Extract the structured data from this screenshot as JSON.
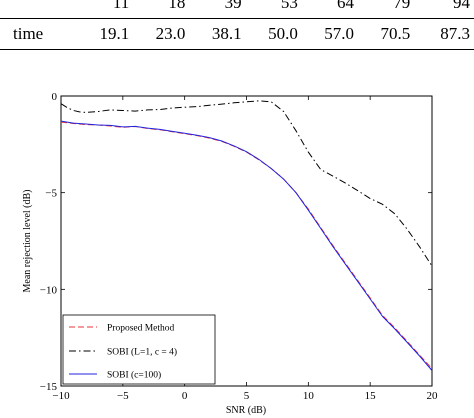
{
  "table": {
    "rows": [
      {
        "label": "",
        "values": [
          "11",
          "18",
          "39",
          "53",
          "64",
          "79",
          "94"
        ]
      },
      {
        "label": "time",
        "values": [
          "19.1",
          "23.0",
          "38.1",
          "50.0",
          "57.0",
          "70.5",
          "87.3"
        ]
      }
    ]
  },
  "chart_data": {
    "type": "line",
    "xlabel": "SNR (dB)",
    "ylabel": "Mean rejection level (dB)",
    "xlim": [
      -10,
      20
    ],
    "ylim": [
      -15,
      0
    ],
    "xticks": [
      -10,
      -5,
      0,
      5,
      10,
      15,
      20
    ],
    "yticks": [
      0,
      -5,
      -10,
      -15
    ],
    "grid": false,
    "legend_position": "bottom-left",
    "series": [
      {
        "name": "Proposed Method",
        "color": "#e8333a",
        "dash": "dashed",
        "x": [
          -10,
          -9,
          -8,
          -7,
          -6,
          -5,
          -4,
          -3,
          -2,
          -1,
          0,
          1,
          2,
          3,
          4,
          5,
          6,
          7,
          8,
          9,
          10,
          11,
          12,
          13,
          14,
          15,
          16,
          17,
          18,
          19,
          20
        ],
        "y": [
          -1.35,
          -1.42,
          -1.48,
          -1.5,
          -1.55,
          -1.62,
          -1.58,
          -1.68,
          -1.75,
          -1.85,
          -1.95,
          -2.05,
          -2.18,
          -2.35,
          -2.6,
          -2.9,
          -3.3,
          -3.75,
          -4.3,
          -5.0,
          -5.85,
          -6.8,
          -7.75,
          -8.65,
          -9.55,
          -10.45,
          -11.35,
          -12.0,
          -12.7,
          -13.4,
          -14.1
        ]
      },
      {
        "name": "SOBI (L=1, c = 4)",
        "color": "#000000",
        "dash": "dashdot",
        "x": [
          -10,
          -9.5,
          -9,
          -8.5,
          -8,
          -7,
          -6,
          -5,
          -4,
          -3,
          -2,
          -1,
          0,
          1,
          2,
          3,
          4,
          5,
          6,
          7,
          8,
          9,
          10,
          11,
          12,
          13,
          14,
          15,
          16,
          17,
          18,
          19,
          20
        ],
        "y": [
          -0.4,
          -0.6,
          -0.75,
          -0.82,
          -0.85,
          -0.8,
          -0.72,
          -0.75,
          -0.78,
          -0.72,
          -0.7,
          -0.62,
          -0.58,
          -0.55,
          -0.48,
          -0.42,
          -0.35,
          -0.3,
          -0.25,
          -0.3,
          -0.8,
          -1.8,
          -2.9,
          -3.8,
          -4.15,
          -4.5,
          -4.9,
          -5.3,
          -5.6,
          -6.1,
          -6.9,
          -7.8,
          -8.8
        ]
      },
      {
        "name": "SOBI (c=100)",
        "color": "#2222dd",
        "dash": "solid",
        "x": [
          -10,
          -9,
          -8,
          -7,
          -6,
          -5,
          -4,
          -3,
          -2,
          -1,
          0,
          1,
          2,
          3,
          4,
          5,
          6,
          7,
          8,
          9,
          10,
          11,
          12,
          13,
          14,
          15,
          16,
          17,
          18,
          19,
          20
        ],
        "y": [
          -1.3,
          -1.4,
          -1.45,
          -1.5,
          -1.52,
          -1.6,
          -1.57,
          -1.66,
          -1.73,
          -1.83,
          -1.93,
          -2.03,
          -2.15,
          -2.33,
          -2.58,
          -2.88,
          -3.28,
          -3.75,
          -4.3,
          -5.0,
          -5.9,
          -6.85,
          -7.8,
          -8.7,
          -9.6,
          -10.5,
          -11.4,
          -12.05,
          -12.75,
          -13.45,
          -14.2
        ]
      }
    ]
  }
}
